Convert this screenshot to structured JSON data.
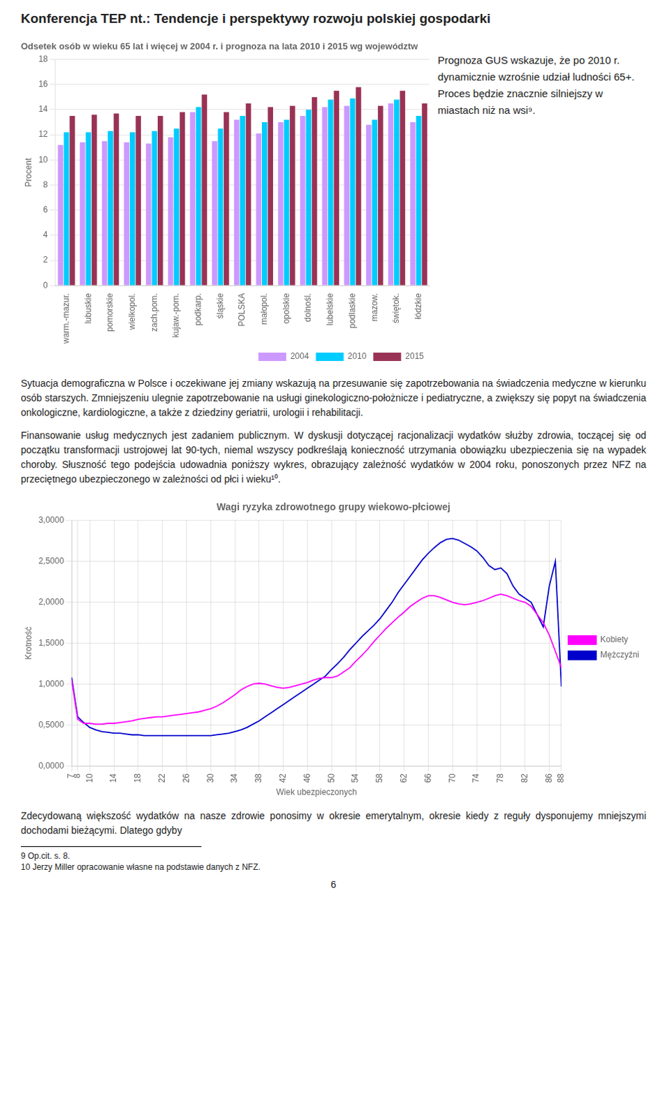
{
  "title": "Konferencja TEP nt.: Tendencje i perspektywy rozwoju polskiej gospodarki",
  "annotations": [
    "Sytuacja demograficzna w Polsce i oczekiwane jej zmiany wskazują na przesuwanie się zapotrzebowania na świadczenia medyczne w kierunku osób starszych. Zmniejszeniu ulegnie zapotrzebowanie na usługi ginekologiczno-położnicze i pediatryczne, a zwiększy się popyt na świadczenia onkologiczne, kardiologiczne, a także z dziedziny geriatrii, urologii i rehabilitacji.",
    "Finansowanie usług medycznych jest zadaniem publicznym. W dyskusji dotyczącej racjonalizacji wydatków służby zdrowia, toczącej się od początku transformacji ustrojowej lat 90-tych, niemal wszyscy podkreślają konieczność utrzymania obowiązku ubezpieczenia się na wypadek choroby. Słuszność tego podejścia udowadnia poniższy wykres, obrazujący zależność wydatków w 2004 roku, ponoszonych przez NFZ na przeciętnego ubezpieczonego w zależności od płci i wieku¹⁰.",
    "Zdecydowaną większość wydatków na nasze zdrowie ponosimy w okresie emerytalnym, okresie kiedy z reguły dysponujemy mniejszymi dochodami bieżącymi. Dlatego gdyby",
    "9 Op.cit. s. 8.",
    "10 Jerzy Miller opracowanie własne na podstawie danych z NFZ.",
    "6"
  ],
  "chart_data": [
    {
      "type": "bar",
      "title": "Odsetek osób w wieku 65 lat i więcej w 2004 r. i prognoza na lata 2010 i 2015 wg województw",
      "ylabel": "Procent",
      "categories": [
        "warm.-mazur.",
        "lubuskie",
        "pomorskie",
        "wielkopol.",
        "zach.pom.",
        "kujaw.-pom.",
        "podkarp.",
        "śląskie",
        "POLSKA",
        "małopol.",
        "opolskie",
        "dolnośl.",
        "lubelskie",
        "podlaskie",
        "mazow.",
        "świętok.",
        "łódzkie"
      ],
      "series": [
        {
          "name": "2004",
          "color": "#cc99ff",
          "values": [
            11.2,
            11.4,
            11.5,
            11.4,
            11.3,
            11.8,
            13.8,
            11.5,
            13.2,
            12.1,
            13.0,
            13.5,
            14.2,
            14.3,
            12.8,
            14.5,
            13.0
          ]
        },
        {
          "name": "2010",
          "color": "#00ccff",
          "values": [
            12.2,
            12.2,
            12.3,
            12.2,
            12.3,
            12.5,
            14.2,
            12.5,
            13.5,
            13.0,
            13.2,
            14.0,
            14.8,
            14.9,
            13.2,
            14.8,
            13.5
          ]
        },
        {
          "name": "2015",
          "color": "#993355",
          "values": [
            13.5,
            13.6,
            13.7,
            13.5,
            13.5,
            13.8,
            15.2,
            13.8,
            14.5,
            14.2,
            14.3,
            15.0,
            15.5,
            15.8,
            14.3,
            15.5,
            14.5
          ]
        }
      ],
      "ylim": [
        0,
        18
      ],
      "yticks": [
        0,
        2,
        4,
        6,
        8,
        10,
        12,
        14,
        16,
        18
      ],
      "grid": true,
      "legend": "lower right",
      "annotations": [
        "Prognoza GUS wskazuje, że po 2010 r. dynamicznie wzrośnie udział ludności 65+. Proces będzie znacznie silniejszy w miastach niż na wsi⁹."
      ]
    },
    {
      "type": "line",
      "title": "Wagi ryzyka zdrowotnego grupy wiekowo-płciowej",
      "xlabel": "Wiek ubezpieczonych",
      "ylabel": "Krotność",
      "x": [
        7,
        8,
        9,
        10,
        11,
        12,
        13,
        14,
        15,
        16,
        17,
        18,
        19,
        20,
        21,
        22,
        23,
        24,
        25,
        26,
        27,
        28,
        29,
        30,
        31,
        32,
        33,
        34,
        35,
        36,
        37,
        38,
        39,
        40,
        41,
        42,
        43,
        44,
        45,
        46,
        47,
        48,
        49,
        50,
        51,
        52,
        53,
        54,
        55,
        56,
        57,
        58,
        59,
        60,
        61,
        62,
        63,
        64,
        65,
        66,
        67,
        68,
        69,
        70,
        71,
        72,
        73,
        74,
        75,
        76,
        77,
        78,
        79,
        80,
        81,
        82,
        83,
        84,
        85,
        86,
        87,
        88
      ],
      "series": [
        {
          "name": "Kobiety",
          "color": "#ff00ff",
          "values": [
            1.05,
            0.57,
            0.52,
            0.52,
            0.51,
            0.51,
            0.52,
            0.52,
            0.53,
            0.54,
            0.55,
            0.57,
            0.58,
            0.59,
            0.6,
            0.6,
            0.61,
            0.62,
            0.63,
            0.64,
            0.65,
            0.66,
            0.68,
            0.7,
            0.73,
            0.77,
            0.82,
            0.87,
            0.93,
            0.97,
            1.0,
            1.01,
            1.0,
            0.98,
            0.96,
            0.95,
            0.96,
            0.98,
            1.0,
            1.02,
            1.05,
            1.07,
            1.08,
            1.08,
            1.1,
            1.15,
            1.2,
            1.28,
            1.35,
            1.43,
            1.52,
            1.6,
            1.68,
            1.75,
            1.82,
            1.88,
            1.95,
            2.0,
            2.05,
            2.08,
            2.08,
            2.06,
            2.03,
            2.0,
            1.98,
            1.97,
            1.98,
            2.0,
            2.02,
            2.05,
            2.08,
            2.1,
            2.08,
            2.05,
            2.02,
            2.0,
            1.95,
            1.85,
            1.75,
            1.6,
            1.4,
            1.2
          ]
        },
        {
          "name": "Mężczyźni",
          "color": "#0000cc",
          "values": [
            1.08,
            0.6,
            0.53,
            0.47,
            0.44,
            0.42,
            0.41,
            0.4,
            0.4,
            0.39,
            0.38,
            0.38,
            0.37,
            0.37,
            0.37,
            0.37,
            0.37,
            0.37,
            0.37,
            0.37,
            0.37,
            0.37,
            0.37,
            0.37,
            0.38,
            0.39,
            0.4,
            0.42,
            0.44,
            0.47,
            0.51,
            0.55,
            0.6,
            0.65,
            0.7,
            0.75,
            0.8,
            0.85,
            0.9,
            0.95,
            1.0,
            1.05,
            1.1,
            1.18,
            1.25,
            1.33,
            1.42,
            1.5,
            1.58,
            1.65,
            1.72,
            1.8,
            1.9,
            2.0,
            2.12,
            2.22,
            2.32,
            2.42,
            2.52,
            2.6,
            2.67,
            2.73,
            2.77,
            2.78,
            2.76,
            2.72,
            2.68,
            2.63,
            2.55,
            2.45,
            2.4,
            2.42,
            2.35,
            2.2,
            2.1,
            2.05,
            2.0,
            1.85,
            1.7,
            2.2,
            2.5,
            0.97
          ]
        }
      ],
      "xlim": [
        7,
        88
      ],
      "xticks": [
        7,
        8,
        10,
        14,
        18,
        22,
        26,
        30,
        34,
        38,
        42,
        46,
        50,
        54,
        58,
        62,
        66,
        70,
        74,
        78,
        82,
        86,
        88
      ],
      "ylim": [
        0,
        3
      ],
      "yticks": [
        {
          "value": 0,
          "label": "0,0000"
        },
        {
          "value": 0.5,
          "label": "0,5000"
        },
        {
          "value": 1,
          "label": "1,0000"
        },
        {
          "value": 1.5,
          "label": "1,5000"
        },
        {
          "value": 2,
          "label": "2,0000"
        },
        {
          "value": 2.5,
          "label": "2,5000"
        },
        {
          "value": 3,
          "label": "3,0000"
        }
      ],
      "grid": true,
      "legend": "right"
    }
  ]
}
